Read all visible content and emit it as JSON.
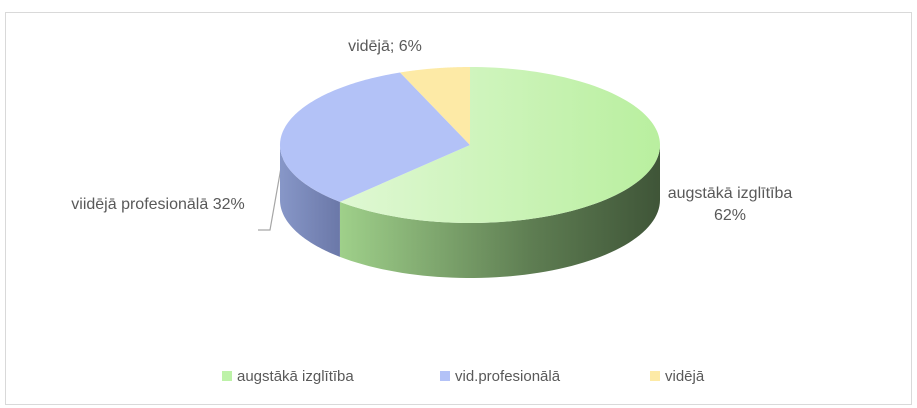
{
  "chart_data": {
    "type": "pie3d",
    "categories": [
      "augstākā izglītība",
      "vid.profesionālā",
      "vidējā"
    ],
    "values": [
      62,
      32,
      6
    ],
    "value_labels": [
      "augstākā izglītība 62%",
      "viidējā profesionālā 32%",
      "vidējā; 6%"
    ],
    "colors": [
      "#bdf2a8",
      "#b3c2f7",
      "#fdeaa6"
    ],
    "legend": "bottom"
  }
}
